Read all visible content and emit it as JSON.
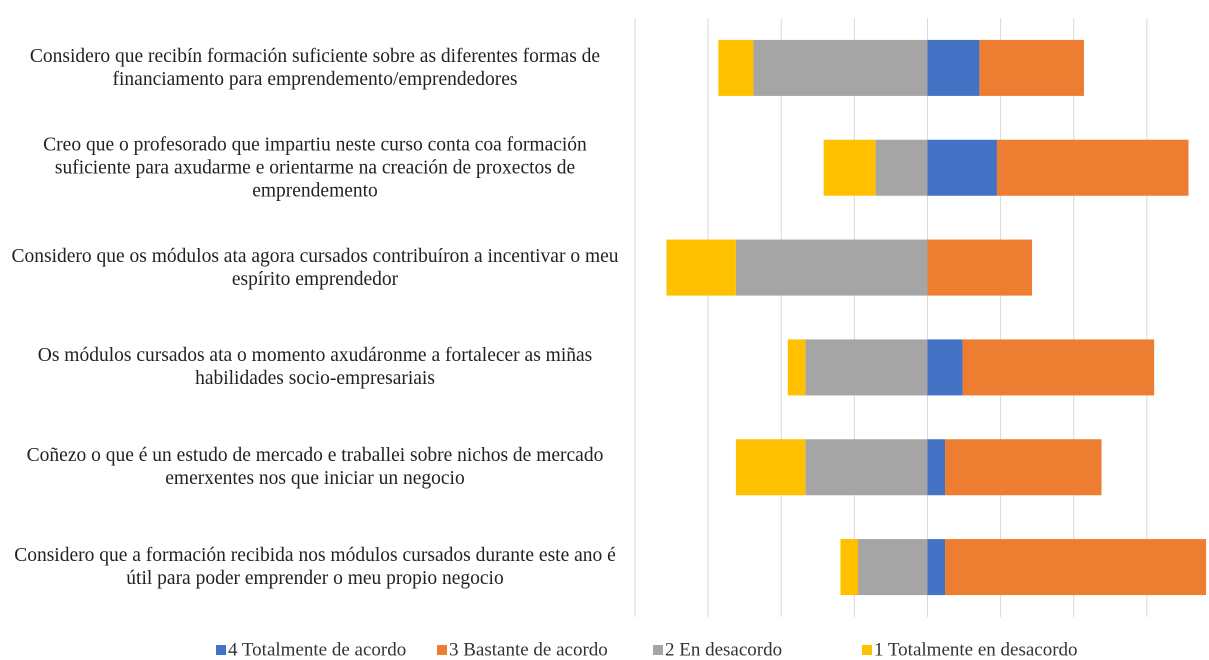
{
  "chart_data": {
    "type": "diverging_stacked_bar",
    "categories": [
      "Considero que recibín formación suficiente sobre as diferentes formas de financiamento para emprendemento/emprendedores",
      "Creo que o profesorado que impartiu neste curso conta coa formación suficiente para axudarme e orientarme na creación de proxectos de emprendemento",
      "Considero que os módulos ata agora cursados contribuíron a incentivar o meu espírito emprendedor",
      "Os módulos cursados ata o momento axudáronme a fortalecer as miñas habilidades socio-empresariais",
      "Coñezo o que é un estudo de mercado e traballei sobre nichos de mercado emerxentes nos que iniciar un negocio",
      "Considero que a formación recibida nos módulos cursados durante este  ano é útil para poder emprender o meu propio negocio"
    ],
    "series": [
      {
        "name": "4 Totalmente de acordo",
        "color": "#4472c4",
        "values": [
          7.1,
          9.5,
          0,
          4.8,
          2.4,
          2.4
        ]
      },
      {
        "name": "3 Bastante de acordo",
        "color": "#ed7d31",
        "values": [
          14.3,
          26.2,
          14.3,
          26.2,
          21.4,
          35.7
        ]
      },
      {
        "name": "2 En desacordo",
        "color": "#a5a5a5",
        "values": [
          -23.8,
          -7.1,
          -26.2,
          -16.7,
          -16.7,
          -9.5
        ]
      },
      {
        "name": "1 Totalmente en desacordo",
        "color": "#ffc000",
        "values": [
          -4.8,
          -7.1,
          -9.5,
          -2.4,
          -9.5,
          -2.4
        ]
      }
    ],
    "xlim": [
      -40,
      38.5
    ],
    "xticks": [
      -40,
      -30,
      -20,
      -10,
      0,
      10,
      20,
      30
    ],
    "grid": true
  }
}
